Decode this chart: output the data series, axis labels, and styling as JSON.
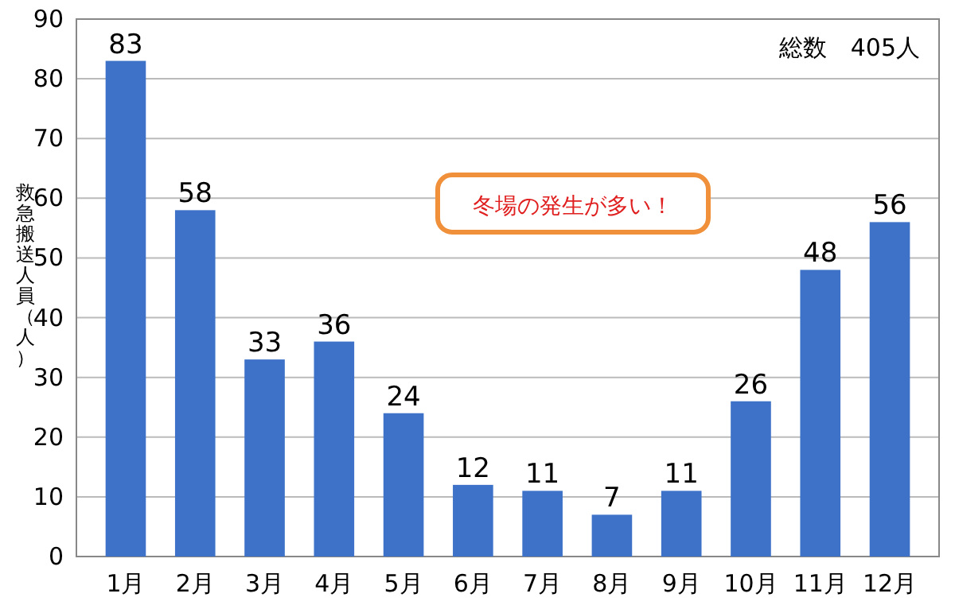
{
  "chart_data": {
    "type": "bar",
    "ylabel": "救急搬送人員（人）",
    "categories": [
      "1月",
      "2月",
      "3月",
      "4月",
      "5月",
      "6月",
      "7月",
      "8月",
      "9月",
      "10月",
      "11月",
      "12月"
    ],
    "values": [
      83,
      58,
      33,
      36,
      24,
      12,
      11,
      7,
      11,
      26,
      48,
      56
    ],
    "color": "#3d72c8",
    "ylim": [
      0,
      90
    ],
    "yticks": [
      0,
      10,
      20,
      30,
      40,
      50,
      60,
      70,
      80,
      90
    ],
    "grid": "y",
    "data_labels": true,
    "annotations": [
      "総数　405人",
      "冬場の発生が多い！"
    ]
  }
}
